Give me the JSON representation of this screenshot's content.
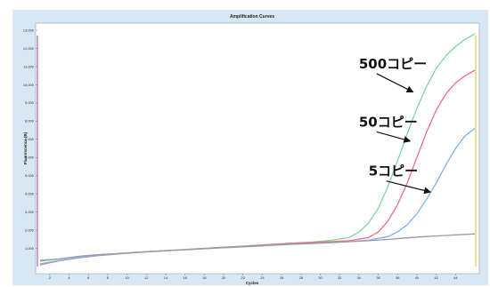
{
  "chart_data": {
    "type": "line",
    "title": "Amplification Curves",
    "xlabel": "Cycles",
    "ylabel": "Fluorescence (R)",
    "xlim": [
      1,
      46
    ],
    "ylim": [
      0,
      13000
    ],
    "x_ticks": [
      2,
      4,
      6,
      8,
      10,
      12,
      14,
      16,
      18,
      20,
      22,
      24,
      26,
      28,
      30,
      32,
      34,
      36,
      38,
      40,
      42,
      44
    ],
    "y_ticks": [
      1000,
      2000,
      3000,
      4000,
      5000,
      6000,
      7000,
      8000,
      9000,
      10000,
      11000,
      12000,
      13000
    ],
    "grid": false,
    "legend": "none",
    "series": [
      {
        "color": "#7fd6a0",
        "x": [
          1,
          3,
          5,
          7,
          9,
          11,
          13,
          15,
          17,
          19,
          21,
          23,
          25,
          27,
          29,
          31,
          33,
          34,
          35,
          36,
          37,
          38,
          39,
          40,
          41,
          42,
          43,
          44,
          45,
          46
        ],
        "y": [
          350,
          420,
          560,
          650,
          720,
          790,
          850,
          910,
          970,
          1030,
          1090,
          1160,
          1220,
          1290,
          1340,
          1430,
          1600,
          1900,
          2400,
          3200,
          4400,
          5800,
          7300,
          8700,
          9900,
          10900,
          11600,
          12100,
          12500,
          12800
        ]
      },
      {
        "color": "#f07080",
        "x": [
          1,
          3,
          5,
          7,
          9,
          11,
          13,
          15,
          17,
          19,
          21,
          23,
          25,
          27,
          29,
          31,
          33,
          35,
          36,
          37,
          38,
          39,
          40,
          41,
          42,
          43,
          44,
          45,
          46
        ],
        "y": [
          100,
          320,
          480,
          600,
          690,
          770,
          840,
          900,
          970,
          1030,
          1090,
          1150,
          1220,
          1280,
          1330,
          1370,
          1420,
          1600,
          1900,
          2500,
          3400,
          4600,
          6000,
          7400,
          8600,
          9500,
          10100,
          10500,
          10800
        ]
      },
      {
        "color": "#7fb3e8",
        "x": [
          1,
          3,
          5,
          7,
          9,
          11,
          13,
          15,
          17,
          19,
          21,
          23,
          25,
          27,
          29,
          31,
          33,
          35,
          37,
          38,
          39,
          40,
          41,
          42,
          43,
          44,
          45,
          46
        ],
        "y": [
          150,
          330,
          500,
          620,
          710,
          780,
          850,
          910,
          960,
          1010,
          1060,
          1110,
          1170,
          1220,
          1260,
          1310,
          1370,
          1450,
          1650,
          1900,
          2300,
          2900,
          3700,
          4600,
          5600,
          6500,
          7200,
          7600
        ]
      },
      {
        "color": "#9a9aa6",
        "x": [
          1,
          3,
          5,
          7,
          9,
          11,
          13,
          15,
          17,
          19,
          21,
          23,
          25,
          27,
          29,
          31,
          33,
          35,
          37,
          39,
          41,
          43,
          45,
          46
        ],
        "y": [
          300,
          420,
          560,
          650,
          710,
          780,
          840,
          900,
          950,
          1010,
          1070,
          1120,
          1180,
          1230,
          1280,
          1320,
          1370,
          1420,
          1490,
          1580,
          1650,
          1710,
          1770,
          1800
        ]
      }
    ],
    "annotations": [
      {
        "text": "500コピー",
        "x": 34,
        "y": 10900,
        "arrow_to": [
          39.6,
          9600
        ]
      },
      {
        "text": "50コピー",
        "x": 34,
        "y": 7700,
        "arrow_to": [
          39.3,
          6900
        ]
      },
      {
        "text": "5コピー",
        "x": 35,
        "y": 5000,
        "arrow_to": [
          41.4,
          4100
        ]
      }
    ]
  }
}
